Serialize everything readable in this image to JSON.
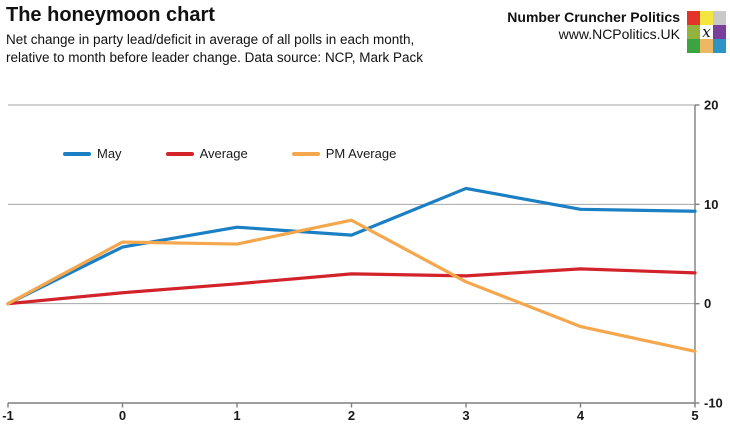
{
  "header": {
    "title": "The honeymoon chart",
    "subtitle_line1": "Net change in party lead/deficit in average of all polls in each month,",
    "subtitle_line2": "relative to month before leader change. Data source: NCP, Mark Pack",
    "brand": {
      "name": "Number Cruncher Politics",
      "url": "www.NCPolitics.UK",
      "logo_center_glyph": "x",
      "logo_colors": [
        [
          "#e2342a",
          "#f3e640",
          "#c9c9c9"
        ],
        [
          "#92b43e",
          "#ffffff",
          "#7a3f98"
        ],
        [
          "#3ba33f",
          "#edb864",
          "#2e93c5"
        ]
      ]
    }
  },
  "chart_data": {
    "type": "line",
    "x": [
      -1,
      0,
      1,
      2,
      3,
      4,
      5
    ],
    "series": [
      {
        "name": "May",
        "color": "#1b7fc4",
        "values": [
          0,
          5.7,
          7.7,
          6.9,
          11.6,
          9.5,
          9.3
        ]
      },
      {
        "name": "Average",
        "color": "#d2232b",
        "values": [
          0,
          1.1,
          2.0,
          3.0,
          2.8,
          3.5,
          3.1
        ]
      },
      {
        "name": "PM Average",
        "color": "#f4a74d",
        "values": [
          0,
          6.2,
          6.0,
          8.4,
          2.2,
          -2.3,
          -4.8
        ]
      }
    ],
    "title": "",
    "xlabel": "",
    "ylabel": "",
    "xlim": [
      -1,
      5
    ],
    "ylim": [
      -10,
      20
    ],
    "xticks": [
      -1,
      0,
      1,
      2,
      3,
      4,
      5
    ],
    "yticks": [
      20,
      10,
      0,
      -10
    ],
    "y_axis_side": "right",
    "grid": true,
    "legend_position": "top-left-inside",
    "colors": {
      "gridline": "#a6a6a6",
      "axis": "#7f7f7f",
      "tick_label": "#1a1a1a"
    }
  }
}
